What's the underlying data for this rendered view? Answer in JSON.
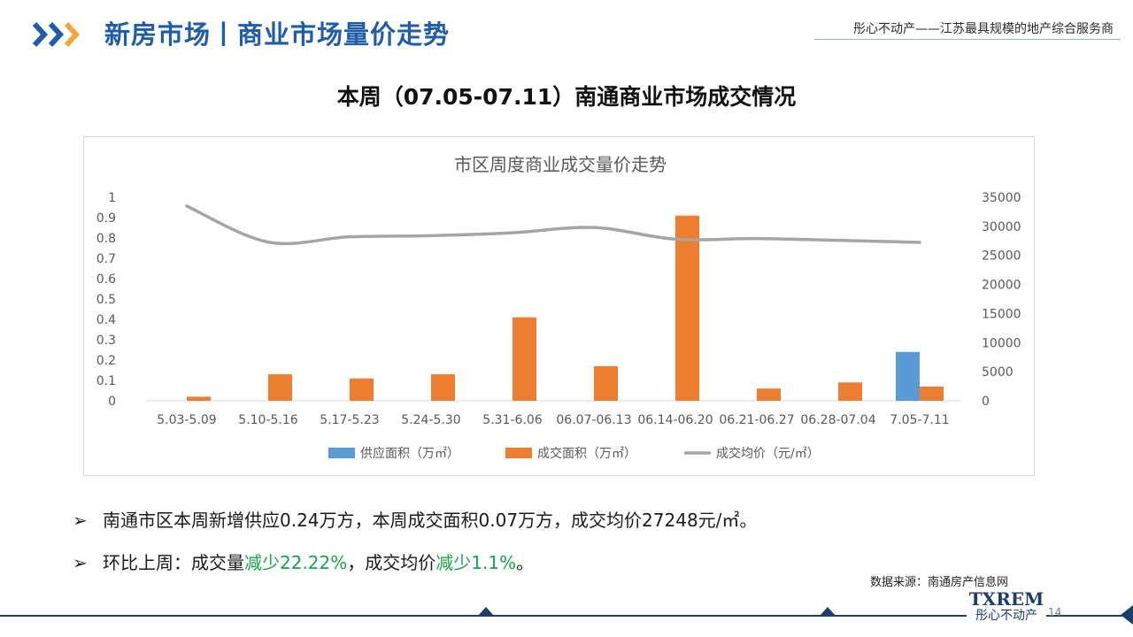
{
  "header": {
    "section_title": "新房市场丨商业市场量价走势",
    "tagline": "彤心不动产——江苏最具规模的地产综合服务商",
    "chevron_color": "#1f5da8",
    "chevron_accent": "#f0a63a"
  },
  "headline": "本周（07.05-07.11）南通商业市场成交情况",
  "chart_data": {
    "type": "bar",
    "title": "市区周度商业成交量价走势",
    "categories": [
      "5.03-5.09",
      "5.10-5.16",
      "5.17-5.23",
      "5.24-5.30",
      "5.31-6.06",
      "06.07-06.13",
      "06.14-06.20",
      "06.21-06.27",
      "06.28-07.04",
      "7.05-7.11"
    ],
    "series": [
      {
        "name": "供应面积（万㎡）",
        "type": "bar",
        "axis": "left",
        "color": "#5b9bd5",
        "values": [
          0,
          0,
          0,
          0,
          0,
          0,
          0,
          0,
          0,
          0.24
        ]
      },
      {
        "name": "成交面积（万㎡）",
        "type": "bar",
        "axis": "left",
        "color": "#ed7d31",
        "values": [
          0.02,
          0.13,
          0.11,
          0.13,
          0.41,
          0.17,
          0.91,
          0.06,
          0.09,
          0.07
        ]
      },
      {
        "name": "成交均价（元/㎡）",
        "type": "line",
        "axis": "right",
        "color": "#a5a5a5",
        "values": [
          33500,
          27300,
          28200,
          28400,
          28900,
          29800,
          27800,
          27900,
          27600,
          27248
        ]
      }
    ],
    "y_left": {
      "min": 0,
      "max": 1,
      "ticks": [
        0,
        0.1,
        0.2,
        0.3,
        0.4,
        0.5,
        0.6,
        0.7,
        0.8,
        0.9,
        1
      ],
      "tick_labels": [
        "0",
        "0.1",
        "0.2",
        "0.3",
        "0.4",
        "0.5",
        "0.6",
        "0.7",
        "0.8",
        "0.9",
        "1"
      ]
    },
    "y_right": {
      "min": 0,
      "max": 35000,
      "ticks": [
        0,
        5000,
        10000,
        15000,
        20000,
        25000,
        30000,
        35000
      ],
      "tick_labels": [
        "0",
        "5000",
        "10000",
        "15000",
        "20000",
        "25000",
        "30000",
        "35000"
      ]
    },
    "grid": false,
    "legend_position": "bottom"
  },
  "bullets": [
    {
      "parts": [
        {
          "text": "南通市区本周新增供应0.24万方，本周成交面积0.07万方，成交均价27248元/㎡。",
          "highlight": false
        }
      ]
    },
    {
      "parts": [
        {
          "text": "环比上周：成交量",
          "highlight": false
        },
        {
          "text": "减少22.22%",
          "highlight": true
        },
        {
          "text": "，成交均价",
          "highlight": false
        },
        {
          "text": "减少1.1%",
          "highlight": true
        },
        {
          "text": "。",
          "highlight": false
        }
      ]
    }
  ],
  "bullet_symbol": "➢",
  "source_note": "数据来源：南通房产信息网",
  "footer": {
    "logo_word": "TXREM",
    "logo_sub": "彤心不动产",
    "page_number": "14"
  },
  "colors": {
    "title_blue": "#1f5da8",
    "highlight_green": "#1aa54a",
    "navy": "#1d3d6b"
  }
}
